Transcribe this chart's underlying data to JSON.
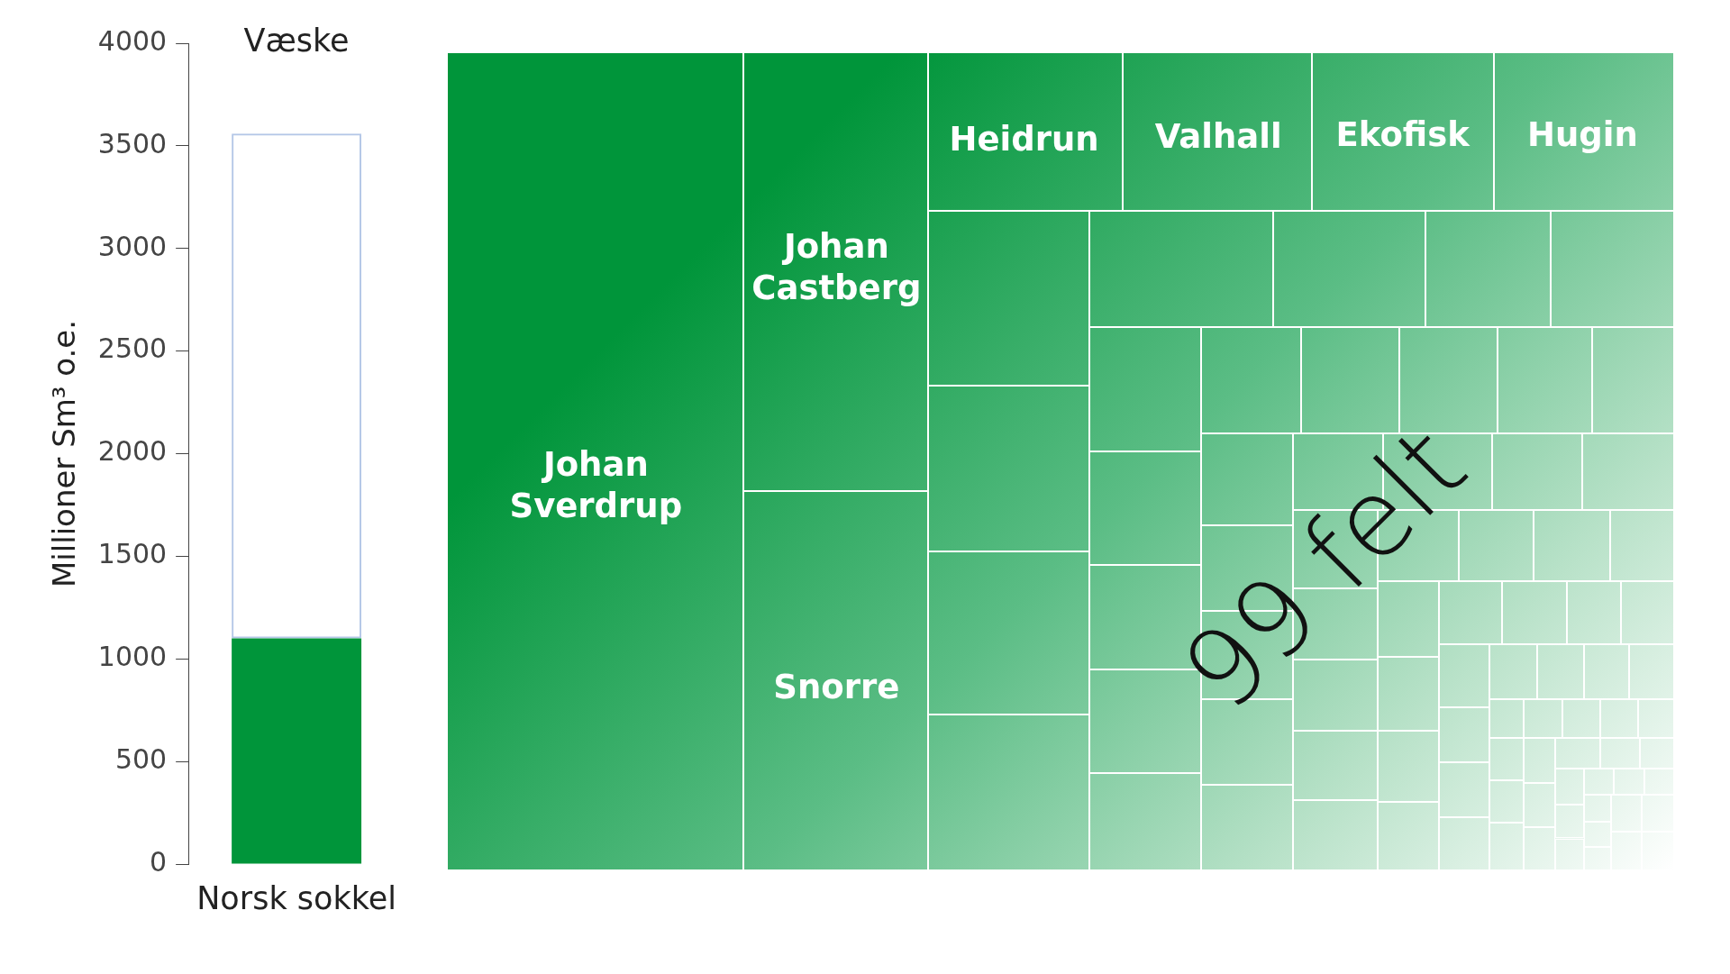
{
  "chart_data": [
    {
      "type": "bar",
      "title": "Væske",
      "ylabel": "Millioner Sm³ o.e.",
      "categories": [
        "Norsk sokkel"
      ],
      "stacked": true,
      "series": [
        {
          "color": "#00953a",
          "values": [
            1100
          ]
        },
        {
          "color": "#b4c7e7",
          "values": [
            2460
          ]
        }
      ],
      "ylim": [
        0,
        4000
      ],
      "yticks": [
        0,
        500,
        1000,
        1500,
        2000,
        2500,
        3000,
        3500,
        4000
      ],
      "grid": false,
      "legend": false
    },
    {
      "type": "other",
      "annotations": [
        "Johan Sverdrup",
        "Johan Castberg",
        "Snorre",
        "Heidrun",
        "Valhall",
        "Ekofisk",
        "Hugin",
        "99 felt"
      ]
    }
  ]
}
